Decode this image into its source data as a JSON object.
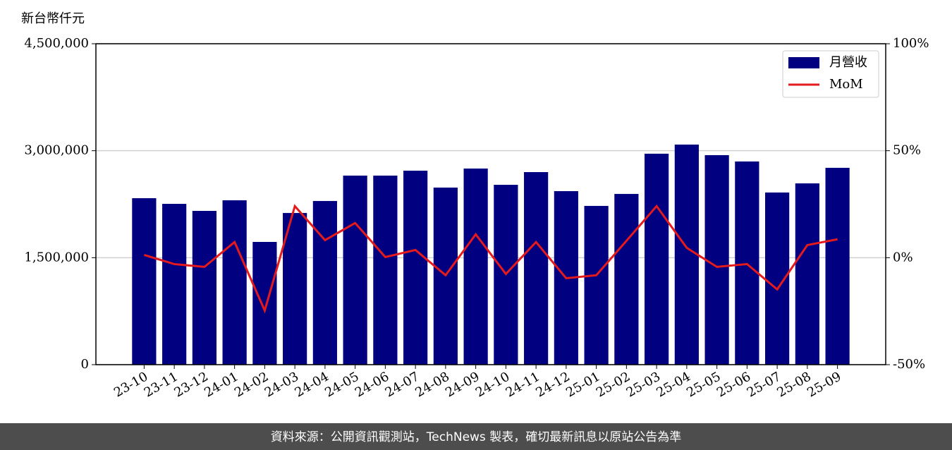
{
  "chart_data": {
    "type": "bar_line",
    "y_label": "新台幣仟元",
    "source": "資料來源：公開資訊觀測站，TechNews 製表，確切最新訊息以原站公告為準",
    "categories": [
      "23-10",
      "23-11",
      "23-12",
      "24-01",
      "24-02",
      "24-03",
      "24-04",
      "24-05",
      "24-06",
      "24-07",
      "24-08",
      "24-09",
      "24-10",
      "24-11",
      "24-12",
      "25-01",
      "25-02",
      "25-03",
      "25-04",
      "25-05",
      "25-06",
      "25-07",
      "25-08",
      "25-09"
    ],
    "series": [
      {
        "name": "月營收",
        "type": "bar",
        "axis": "y",
        "color": "#000080",
        "values": [
          2334000,
          2255000,
          2156000,
          2305000,
          1721000,
          2127000,
          2295000,
          2651000,
          2651000,
          2720000,
          2483000,
          2750000,
          2522000,
          2700000,
          2433000,
          2226000,
          2394000,
          2958000,
          3086000,
          2938000,
          2849000,
          2414000,
          2542000,
          2760000
        ]
      },
      {
        "name": "MoM",
        "type": "line",
        "axis": "y2",
        "color": "#e41a1c",
        "values": [
          1.3,
          -3.0,
          -4.3,
          7.3,
          -24.7,
          24.1,
          8.2,
          16.2,
          0.3,
          3.6,
          -8.2,
          10.9,
          -7.6,
          7.3,
          -9.6,
          -8.2,
          7.9,
          24.1,
          4.6,
          -4.3,
          -3.0,
          -14.8,
          5.9,
          8.6
        ]
      }
    ],
    "ylim": [
      0,
      4500000
    ],
    "yticks": [
      0,
      {
        "value": 1500000,
        "label": "1,500,000"
      },
      {
        "value": 3000000,
        "label": "3,000,000"
      },
      {
        "value": 4500000,
        "label": "4,500,000"
      }
    ],
    "y2lim": [
      -50,
      100
    ],
    "y2ticks": [
      {
        "value": -50,
        "label": "-50%"
      },
      {
        "value": 0,
        "label": "0%"
      },
      {
        "value": 50,
        "label": "50%"
      },
      {
        "value": 100,
        "label": "100%"
      }
    ],
    "grid": true,
    "legend": "upper right"
  }
}
